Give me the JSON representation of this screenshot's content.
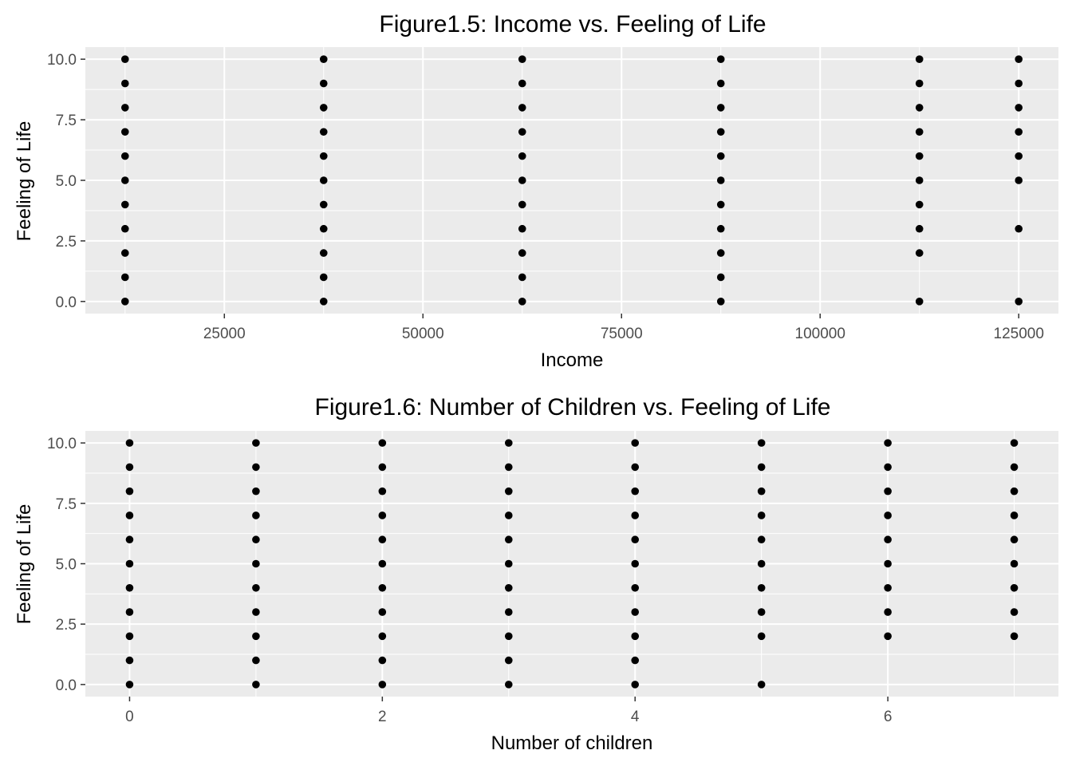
{
  "chart_data": [
    {
      "type": "scatter",
      "title": "Figure1.5: Income vs. Feeling of Life",
      "xlabel": "Income",
      "ylabel": "Feeling of Life",
      "xlim": [
        7500,
        130000
      ],
      "ylim": [
        -0.5,
        10.5
      ],
      "x_ticks": [
        25000,
        50000,
        75000,
        100000,
        125000
      ],
      "x_tick_labels": [
        "25000",
        "50000",
        "75000",
        "100000",
        "125000"
      ],
      "y_ticks": [
        0,
        2.5,
        5,
        7.5,
        10
      ],
      "y_tick_labels": [
        "0.0",
        "2.5",
        "5.0",
        "7.5",
        "10.0"
      ],
      "grid": true,
      "point_color": "#000000",
      "panel_color": "#ebebeb",
      "grid_color": "#ffffff",
      "points": [
        {
          "x": 12500,
          "y": [
            0,
            1,
            2,
            3,
            4,
            5,
            6,
            7,
            8,
            9,
            10
          ]
        },
        {
          "x": 37500,
          "y": [
            0,
            1,
            2,
            3,
            4,
            5,
            6,
            7,
            8,
            9,
            10
          ]
        },
        {
          "x": 62500,
          "y": [
            0,
            1,
            2,
            3,
            4,
            5,
            6,
            7,
            8,
            9,
            10
          ]
        },
        {
          "x": 87500,
          "y": [
            0,
            1,
            2,
            3,
            4,
            5,
            6,
            7,
            8,
            9,
            10
          ]
        },
        {
          "x": 112500,
          "y": [
            0,
            2,
            3,
            4,
            5,
            6,
            7,
            8,
            9,
            10
          ]
        },
        {
          "x": 125000,
          "y": [
            0,
            3,
            5,
            6,
            7,
            8,
            9,
            10
          ]
        }
      ]
    },
    {
      "type": "scatter",
      "title": "Figure1.6: Number of Children vs. Feeling of Life",
      "xlabel": "Number of children",
      "ylabel": "Feeling of Life",
      "xlim": [
        -0.35,
        7.35
      ],
      "ylim": [
        -0.5,
        10.5
      ],
      "x_ticks": [
        0,
        2,
        4,
        6
      ],
      "x_tick_labels": [
        "0",
        "2",
        "4",
        "6"
      ],
      "y_ticks": [
        0,
        2.5,
        5,
        7.5,
        10
      ],
      "y_tick_labels": [
        "0.0",
        "2.5",
        "5.0",
        "7.5",
        "10.0"
      ],
      "grid": true,
      "point_color": "#000000",
      "panel_color": "#ebebeb",
      "grid_color": "#ffffff",
      "points": [
        {
          "x": 0,
          "y": [
            0,
            1,
            2,
            3,
            4,
            5,
            6,
            7,
            8,
            9,
            10
          ]
        },
        {
          "x": 1,
          "y": [
            0,
            1,
            2,
            3,
            4,
            5,
            6,
            7,
            8,
            9,
            10
          ]
        },
        {
          "x": 2,
          "y": [
            0,
            1,
            2,
            3,
            4,
            5,
            6,
            7,
            8,
            9,
            10
          ]
        },
        {
          "x": 3,
          "y": [
            0,
            1,
            2,
            3,
            4,
            5,
            6,
            7,
            8,
            9,
            10
          ]
        },
        {
          "x": 4,
          "y": [
            0,
            1,
            2,
            3,
            4,
            5,
            6,
            7,
            8,
            9,
            10
          ]
        },
        {
          "x": 5,
          "y": [
            0,
            2,
            3,
            4,
            5,
            6,
            7,
            8,
            9,
            10
          ]
        },
        {
          "x": 6,
          "y": [
            2,
            3,
            4,
            5,
            6,
            7,
            8,
            9,
            10
          ]
        },
        {
          "x": 7,
          "y": [
            2,
            3,
            4,
            5,
            6,
            7,
            8,
            9,
            10
          ]
        }
      ]
    }
  ]
}
